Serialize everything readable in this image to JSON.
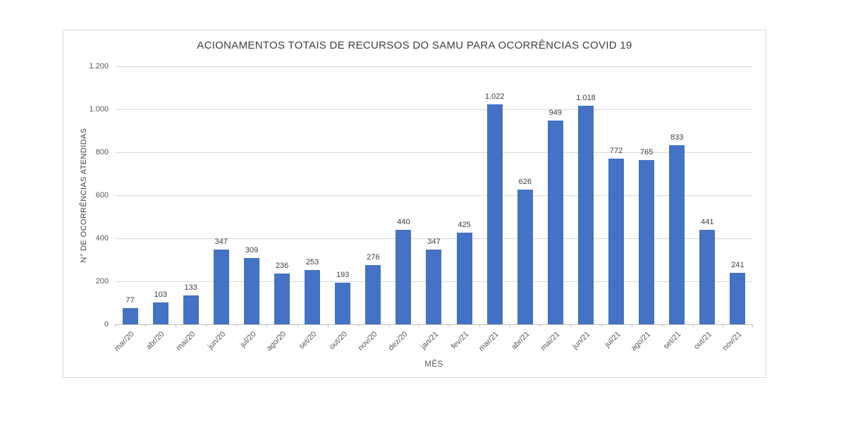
{
  "chart_data": {
    "type": "bar",
    "title": "ACIONAMENTOS TOTAIS DE RECURSOS DO SAMU PARA OCORRÊNCIAS COVID 19",
    "xlabel": "MÊS",
    "ylabel": "N° DE OCORRÊNCIAS ATENDIDAS",
    "categories": [
      "mar/20",
      "abr/20",
      "mai/20",
      "jun/20",
      "jul/20",
      "ago/20",
      "set/20",
      "out/20",
      "nov/20",
      "dez/20",
      "jan/21",
      "fev/21",
      "mar/21",
      "abr/21",
      "mai/21",
      "jun/21",
      "jul/21",
      "ago/21",
      "set/21",
      "out/21",
      "nov/21"
    ],
    "values": [
      77,
      103,
      133,
      347,
      309,
      236,
      253,
      193,
      276,
      440,
      347,
      425,
      1022,
      626,
      949,
      1018,
      772,
      765,
      833,
      441,
      241
    ],
    "value_labels": [
      "77",
      "103",
      "133",
      "347",
      "309",
      "236",
      "253",
      "193",
      "276",
      "440",
      "347",
      "425",
      "1.022",
      "626",
      "949",
      "1.018",
      "772",
      "765",
      "833",
      "441",
      "241"
    ],
    "y_ticks": [
      "1.200",
      "1.000",
      "800",
      "600",
      "400",
      "200",
      "0"
    ],
    "ylim": [
      0,
      1200
    ],
    "grid": true,
    "legend": false,
    "bar_color": "#4472C4"
  },
  "colors": {
    "bar": "#4472C4",
    "title_text": "#404040",
    "axis_text": "#595959",
    "gridline": "#D9D9D9",
    "axis_line": "#BFBFBF",
    "chart_border": "#D9D9D9",
    "background": "#FFFFFF"
  }
}
